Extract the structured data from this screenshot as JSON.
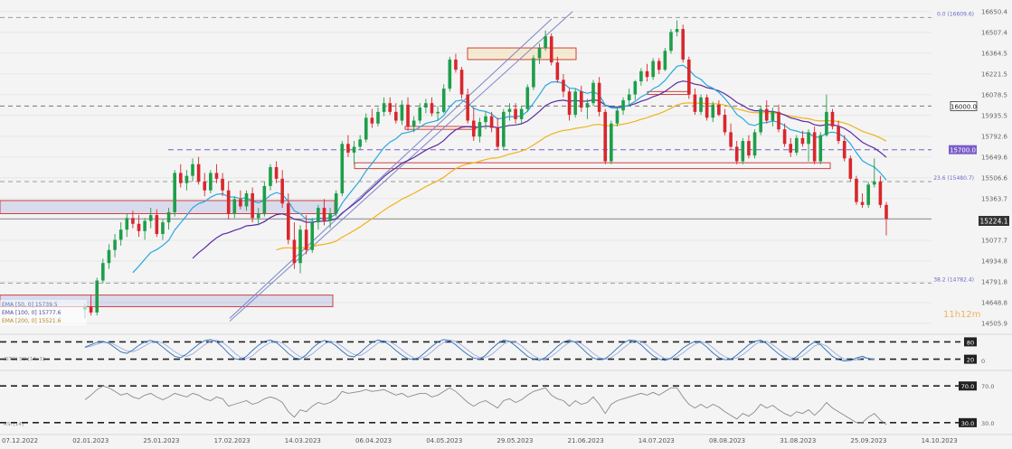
{
  "chart_data": {
    "type": "candlestick",
    "instrument_last_price": "15224.1",
    "timer": {
      "h": "11h",
      "m": "12m"
    },
    "price_axis_ticks": [
      16650.4,
      16507.4,
      16364.5,
      16221.5,
      16078.5,
      15935.5,
      15792.6,
      15649.6,
      15506.6,
      15363.7,
      15220.7,
      15077.7,
      14934.8,
      14791.8,
      14648.8,
      14505.9
    ],
    "price_axis_labels": [
      "16650.4",
      "16507.4",
      "16364.5",
      "16221.5",
      "16078.5",
      "15935.5",
      "15792.6",
      "15649.6",
      "15506.6",
      "15363.7",
      "15077.7",
      "14934.8",
      "14791.8",
      "14648.8",
      "14505.9"
    ],
    "price_range": [
      14480,
      16680
    ],
    "date_labels": [
      "07.12.2022",
      "02.01.2023",
      "25.01.2023",
      "17.02.2023",
      "14.03.2023",
      "06.04.2023",
      "04.05.2023",
      "29.05.2023",
      "21.06.2023",
      "14.07.2023",
      "08.08.2023",
      "31.08.2023",
      "25.09.2023",
      "14.10.2023"
    ],
    "horizontal_levels": [
      {
        "label": "0.0 (16609.6)",
        "price": 16609.6,
        "style": "fib"
      },
      {
        "label": "16000.0",
        "price": 16000.0,
        "style": "boxed-dark"
      },
      {
        "label": "15700.0",
        "price": 15700.0,
        "style": "boxed-purple"
      },
      {
        "label": "23.6 (15480.7)",
        "price": 15480.7,
        "style": "fib"
      },
      {
        "label": "38.2 (14782.4)",
        "price": 14782.4,
        "style": "fib"
      }
    ],
    "indicator_legend": [
      "EMA [50, 0] 15739.5",
      "EMA [100, 0] 15777.6",
      "EMA [200, 0] 15521.6"
    ],
    "panel1": {
      "name": "(STO) SO [14, 3]",
      "levels": [
        80,
        20
      ],
      "level_labels": [
        "80",
        "20",
        "0"
      ]
    },
    "panel2": {
      "name": "RSI [14]",
      "levels": [
        70,
        30
      ],
      "level_labels": [
        "70.0",
        "30.0"
      ]
    },
    "candles": [
      [
        14600,
        14640,
        14540,
        14620
      ],
      [
        14620,
        14700,
        14560,
        14580
      ],
      [
        14580,
        14820,
        14560,
        14800
      ],
      [
        14800,
        14950,
        14780,
        14920
      ],
      [
        14920,
        15050,
        14880,
        15010
      ],
      [
        15010,
        15120,
        14960,
        15080
      ],
      [
        15080,
        15200,
        15040,
        15150
      ],
      [
        15150,
        15260,
        15100,
        15230
      ],
      [
        15230,
        15280,
        15160,
        15190
      ],
      [
        15190,
        15250,
        15100,
        15140
      ],
      [
        15140,
        15230,
        15080,
        15210
      ],
      [
        15210,
        15300,
        15160,
        15250
      ],
      [
        15250,
        15290,
        15100,
        15120
      ],
      [
        15120,
        15220,
        15080,
        15200
      ],
      [
        15200,
        15300,
        15150,
        15270
      ],
      [
        15270,
        15560,
        15240,
        15540
      ],
      [
        15540,
        15600,
        15440,
        15470
      ],
      [
        15470,
        15560,
        15420,
        15520
      ],
      [
        15520,
        15640,
        15480,
        15600
      ],
      [
        15600,
        15650,
        15460,
        15480
      ],
      [
        15480,
        15540,
        15380,
        15420
      ],
      [
        15420,
        15560,
        15400,
        15540
      ],
      [
        15540,
        15600,
        15470,
        15500
      ],
      [
        15500,
        15540,
        15380,
        15420
      ],
      [
        15420,
        15480,
        15220,
        15260
      ],
      [
        15260,
        15380,
        15230,
        15360
      ],
      [
        15360,
        15420,
        15290,
        15310
      ],
      [
        15310,
        15420,
        15280,
        15400
      ],
      [
        15400,
        15440,
        15200,
        15230
      ],
      [
        15230,
        15300,
        15180,
        15260
      ],
      [
        15260,
        15480,
        15240,
        15450
      ],
      [
        15450,
        15600,
        15420,
        15580
      ],
      [
        15580,
        15620,
        15470,
        15500
      ],
      [
        15500,
        15560,
        15300,
        15330
      ],
      [
        15330,
        15400,
        15050,
        15080
      ],
      [
        15080,
        15200,
        14880,
        14920
      ],
      [
        14920,
        15180,
        14850,
        15150
      ],
      [
        15150,
        15250,
        14980,
        15010
      ],
      [
        15010,
        15230,
        14990,
        15200
      ],
      [
        15200,
        15320,
        15150,
        15300
      ],
      [
        15300,
        15360,
        15180,
        15210
      ],
      [
        15210,
        15300,
        15160,
        15260
      ],
      [
        15260,
        15420,
        15240,
        15400
      ],
      [
        15400,
        15760,
        15380,
        15740
      ],
      [
        15740,
        15800,
        15650,
        15680
      ],
      [
        15680,
        15760,
        15600,
        15720
      ],
      [
        15720,
        15800,
        15700,
        15770
      ],
      [
        15770,
        15950,
        15750,
        15920
      ],
      [
        15920,
        15980,
        15850,
        15880
      ],
      [
        15880,
        15990,
        15860,
        15960
      ],
      [
        15960,
        16060,
        15930,
        16020
      ],
      [
        16020,
        16060,
        15940,
        15960
      ],
      [
        15960,
        16020,
        15880,
        15900
      ],
      [
        15900,
        16040,
        15870,
        16010
      ],
      [
        16010,
        16060,
        15830,
        15860
      ],
      [
        15860,
        15930,
        15820,
        15900
      ],
      [
        15900,
        16020,
        15880,
        15990
      ],
      [
        15990,
        16050,
        15950,
        16020
      ],
      [
        16020,
        16060,
        15930,
        15950
      ],
      [
        15950,
        16000,
        15900,
        15960
      ],
      [
        15960,
        16150,
        15950,
        16120
      ],
      [
        16120,
        16340,
        16100,
        16320
      ],
      [
        16320,
        16360,
        16230,
        16250
      ],
      [
        16250,
        16270,
        16050,
        16080
      ],
      [
        16080,
        16120,
        15880,
        15900
      ],
      [
        15900,
        15990,
        15760,
        15790
      ],
      [
        15790,
        15920,
        15750,
        15890
      ],
      [
        15890,
        15960,
        15840,
        15930
      ],
      [
        15930,
        15960,
        15820,
        15850
      ],
      [
        15850,
        15920,
        15700,
        15720
      ],
      [
        15720,
        15980,
        15700,
        15960
      ],
      [
        15960,
        16020,
        15900,
        15980
      ],
      [
        15980,
        16020,
        15880,
        15910
      ],
      [
        15910,
        16000,
        15880,
        15980
      ],
      [
        15980,
        16150,
        15960,
        16130
      ],
      [
        16130,
        16350,
        16110,
        16330
      ],
      [
        16330,
        16430,
        16290,
        16400
      ],
      [
        16400,
        16520,
        16380,
        16480
      ],
      [
        16480,
        16500,
        16280,
        16300
      ],
      [
        16300,
        16340,
        16160,
        16180
      ],
      [
        16180,
        16220,
        16060,
        16100
      ],
      [
        16100,
        16120,
        15900,
        15940
      ],
      [
        15940,
        16120,
        15920,
        16100
      ],
      [
        16100,
        16140,
        15960,
        15990
      ],
      [
        15990,
        16050,
        15910,
        16020
      ],
      [
        16020,
        16180,
        16000,
        16160
      ],
      [
        16160,
        16200,
        15930,
        15960
      ],
      [
        15960,
        15980,
        15600,
        15620
      ],
      [
        15620,
        15900,
        15600,
        15880
      ],
      [
        15880,
        15990,
        15860,
        15970
      ],
      [
        15970,
        16060,
        15940,
        16040
      ],
      [
        16040,
        16120,
        16000,
        16080
      ],
      [
        16080,
        16180,
        16040,
        16170
      ],
      [
        16170,
        16260,
        16140,
        16240
      ],
      [
        16240,
        16290,
        16170,
        16200
      ],
      [
        16200,
        16330,
        16180,
        16310
      ],
      [
        16310,
        16330,
        16220,
        16250
      ],
      [
        16250,
        16400,
        16240,
        16380
      ],
      [
        16380,
        16530,
        16360,
        16510
      ],
      [
        16510,
        16590,
        16480,
        16530
      ],
      [
        16530,
        16560,
        16300,
        16320
      ],
      [
        16320,
        16340,
        16050,
        16080
      ],
      [
        16080,
        16120,
        15940,
        15960
      ],
      [
        15960,
        16080,
        15940,
        16060
      ],
      [
        16060,
        16080,
        15900,
        15920
      ],
      [
        15920,
        16030,
        15890,
        16010
      ],
      [
        16010,
        16040,
        15930,
        15940
      ],
      [
        15940,
        15980,
        15800,
        15820
      ],
      [
        15820,
        15880,
        15700,
        15720
      ],
      [
        15720,
        15760,
        15600,
        15620
      ],
      [
        15620,
        15780,
        15600,
        15760
      ],
      [
        15760,
        15800,
        15640,
        15660
      ],
      [
        15660,
        15840,
        15640,
        15820
      ],
      [
        15820,
        16000,
        15800,
        15980
      ],
      [
        15980,
        16040,
        15880,
        15900
      ],
      [
        15900,
        15990,
        15860,
        15960
      ],
      [
        15960,
        16010,
        15820,
        15840
      ],
      [
        15840,
        15880,
        15720,
        15740
      ],
      [
        15740,
        15780,
        15650,
        15680
      ],
      [
        15680,
        15800,
        15660,
        15780
      ],
      [
        15780,
        15830,
        15720,
        15740
      ],
      [
        15740,
        15840,
        15620,
        15820
      ],
      [
        15820,
        15860,
        15600,
        15620
      ],
      [
        15620,
        15820,
        15600,
        15800
      ],
      [
        15800,
        16080,
        15790,
        15960
      ],
      [
        15960,
        15980,
        15840,
        15860
      ],
      [
        15860,
        15900,
        15740,
        15760
      ],
      [
        15760,
        15800,
        15620,
        15640
      ],
      [
        15640,
        15660,
        15480,
        15500
      ],
      [
        15500,
        15520,
        15320,
        15340
      ],
      [
        15340,
        15400,
        15300,
        15320
      ],
      [
        15320,
        15480,
        15300,
        15460
      ],
      [
        15460,
        15640,
        15440,
        15480
      ],
      [
        15480,
        15520,
        15300,
        15320
      ],
      [
        15320,
        15340,
        15110,
        15224
      ]
    ],
    "sto_k": [
      62,
      70,
      78,
      82,
      75,
      60,
      45,
      40,
      52,
      68,
      80,
      85,
      78,
      62,
      45,
      30,
      25,
      38,
      55,
      72,
      84,
      88,
      80,
      62,
      40,
      22,
      18,
      30,
      50,
      68,
      82,
      86,
      78,
      60,
      40,
      25,
      20,
      35,
      58,
      75,
      85,
      80,
      66,
      48,
      32,
      28,
      42,
      62,
      78,
      86,
      82,
      68,
      50,
      34,
      22,
      18,
      28,
      46,
      64,
      80,
      88,
      84,
      70,
      52,
      36,
      24,
      20,
      34,
      56,
      74,
      86,
      82,
      66,
      48,
      30,
      20,
      16,
      26,
      44,
      64,
      80,
      86,
      78,
      60,
      40,
      24,
      18,
      22,
      38,
      58,
      76,
      86,
      84,
      70,
      50,
      32,
      20,
      16,
      24,
      40,
      58,
      72,
      82,
      78,
      62,
      42,
      26,
      18,
      20,
      34,
      52,
      70,
      82,
      86,
      74,
      56,
      38,
      24,
      18,
      28,
      48,
      66,
      80,
      70,
      50,
      30,
      18,
      14,
      16,
      24,
      30,
      22,
      18
    ],
    "sto_d": [
      60,
      65,
      72,
      78,
      78,
      70,
      58,
      48,
      46,
      54,
      66,
      78,
      82,
      76,
      62,
      46,
      34,
      30,
      38,
      54,
      70,
      82,
      86,
      78,
      62,
      42,
      26,
      22,
      32,
      50,
      66,
      78,
      82,
      76,
      60,
      42,
      28,
      26,
      38,
      56,
      72,
      82,
      78,
      64,
      48,
      36,
      32,
      44,
      60,
      76,
      84,
      80,
      68,
      52,
      36,
      24,
      22,
      30,
      46,
      64,
      78,
      86,
      82,
      68,
      52,
      36,
      26,
      26,
      36,
      54,
      72,
      82,
      80,
      66,
      48,
      32,
      22,
      20,
      30,
      46,
      64,
      78,
      82,
      74,
      58,
      40,
      26,
      20,
      26,
      40,
      58,
      74,
      84,
      82,
      68,
      50,
      34,
      22,
      20,
      28,
      42,
      58,
      72,
      80,
      76,
      60,
      42,
      28,
      22,
      24,
      36,
      52,
      70,
      82,
      82,
      70,
      54,
      38,
      26,
      22,
      32,
      48,
      66,
      74,
      66,
      48,
      32,
      20,
      16,
      18,
      24,
      24,
      20
    ],
    "rsi": [
      55,
      60,
      66,
      70,
      68,
      64,
      60,
      62,
      58,
      56,
      60,
      62,
      58,
      55,
      58,
      62,
      60,
      58,
      62,
      60,
      56,
      54,
      58,
      56,
      48,
      50,
      52,
      54,
      50,
      52,
      56,
      58,
      56,
      52,
      42,
      36,
      44,
      42,
      48,
      52,
      50,
      52,
      56,
      64,
      62,
      63,
      64,
      66,
      64,
      65,
      66,
      63,
      60,
      62,
      58,
      60,
      62,
      62,
      58,
      60,
      64,
      68,
      64,
      58,
      52,
      48,
      52,
      54,
      50,
      46,
      54,
      56,
      52,
      55,
      60,
      64,
      66,
      68,
      60,
      56,
      54,
      48,
      54,
      50,
      52,
      58,
      50,
      40,
      50,
      54,
      56,
      58,
      60,
      62,
      60,
      63,
      60,
      64,
      68,
      68,
      58,
      50,
      46,
      50,
      46,
      50,
      47,
      42,
      38,
      34,
      40,
      37,
      42,
      50,
      46,
      49,
      44,
      40,
      37,
      42,
      40,
      44,
      38,
      44,
      52,
      46,
      42,
      38,
      34,
      30,
      30,
      36,
      40,
      33,
      28
    ]
  }
}
